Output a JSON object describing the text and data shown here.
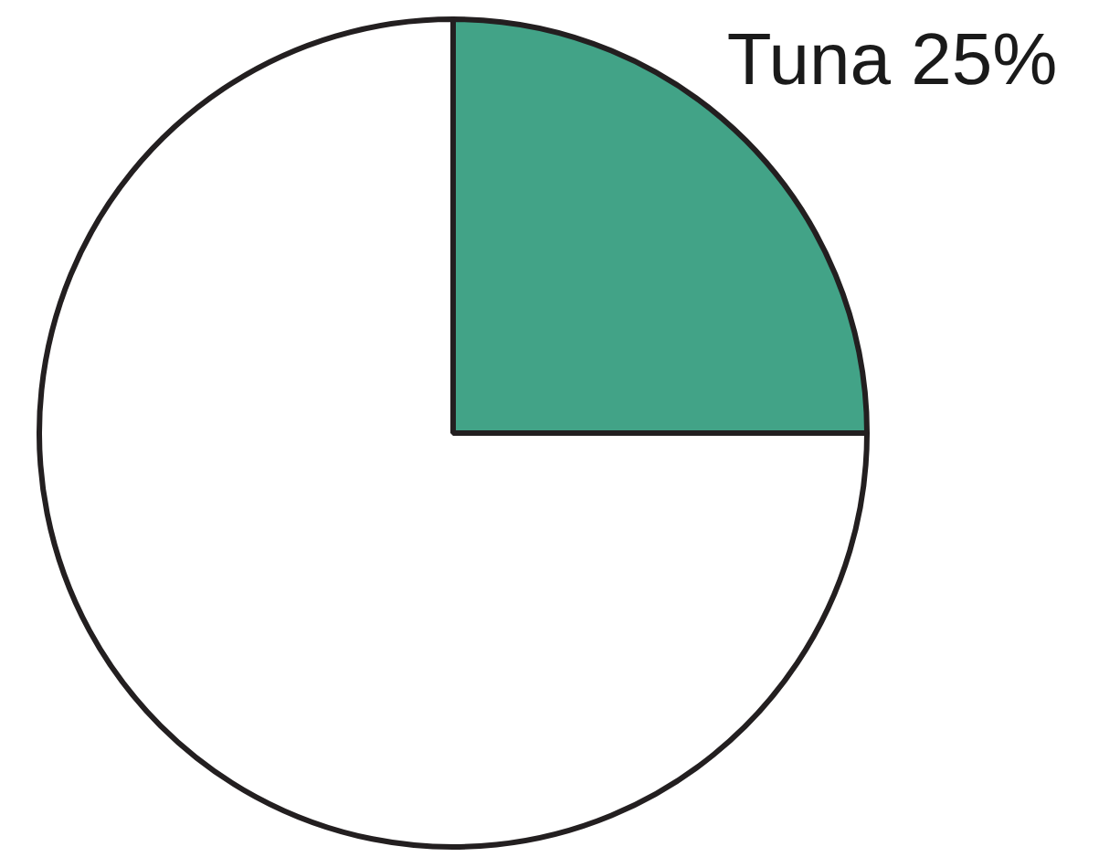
{
  "chart_data": {
    "type": "pie",
    "categories": [
      "Tuna",
      null
    ],
    "values": [
      25,
      75
    ],
    "colors": [
      "#42a387",
      "#ffffff"
    ],
    "value_labels": [
      "25%",
      null
    ]
  }
}
